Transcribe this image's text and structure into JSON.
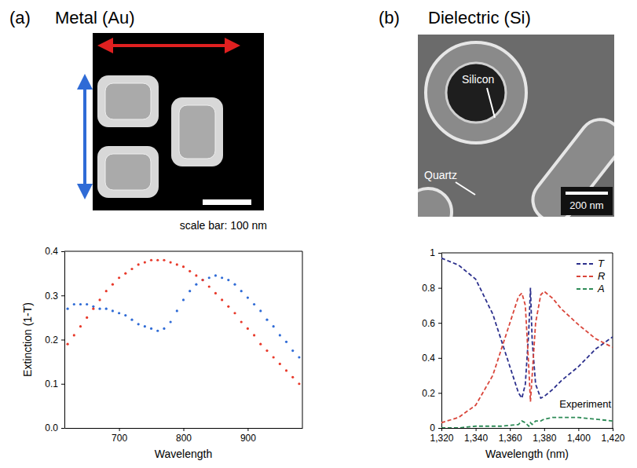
{
  "chart_data": [
    {
      "type": "scatter",
      "panel_label": "(a)",
      "title": "Metal (Au)",
      "annotations": [
        "scale bar: 100 nm"
      ],
      "x_label": "Wavelength",
      "y_label": "Extinction (1-T)",
      "marker": "dot",
      "x": [
        620,
        630,
        640,
        650,
        660,
        670,
        680,
        690,
        700,
        710,
        720,
        730,
        740,
        750,
        760,
        770,
        780,
        790,
        800,
        810,
        820,
        830,
        840,
        850,
        860,
        870,
        880,
        890,
        900,
        910,
        920,
        930,
        940,
        950,
        960,
        970,
        980
      ],
      "series": [
        {
          "color": "#2f6bd6",
          "values": [
            0.27,
            0.28,
            0.28,
            0.28,
            0.275,
            0.27,
            0.27,
            0.265,
            0.26,
            0.255,
            0.245,
            0.235,
            0.23,
            0.225,
            0.22,
            0.225,
            0.24,
            0.265,
            0.29,
            0.31,
            0.325,
            0.335,
            0.34,
            0.345,
            0.34,
            0.335,
            0.325,
            0.31,
            0.295,
            0.28,
            0.265,
            0.245,
            0.23,
            0.21,
            0.195,
            0.175,
            0.16
          ]
        },
        {
          "color": "#e8392a",
          "values": [
            0.19,
            0.21,
            0.23,
            0.25,
            0.27,
            0.29,
            0.31,
            0.325,
            0.34,
            0.35,
            0.36,
            0.37,
            0.375,
            0.38,
            0.38,
            0.38,
            0.375,
            0.37,
            0.365,
            0.355,
            0.345,
            0.335,
            0.32,
            0.305,
            0.29,
            0.275,
            0.26,
            0.24,
            0.225,
            0.21,
            0.19,
            0.175,
            0.16,
            0.145,
            0.13,
            0.115,
            0.1
          ]
        }
      ],
      "xlim": [
        615,
        985
      ],
      "xticks": [
        700,
        800,
        900
      ],
      "ylim": [
        0,
        0.4
      ],
      "yticks": [
        {
          "value": 0,
          "label": "0.0"
        },
        0.1,
        0.2,
        0.3,
        0.4
      ],
      "grid": false
    },
    {
      "type": "line",
      "panel_label": "(b)",
      "title": "Dielectric (Si)",
      "annotations": [
        "Silicon",
        "Quartz",
        "200 nm",
        "Experiment"
      ],
      "x_label": "Wavelength (nm)",
      "line_style": "dashed",
      "legend": "upper right",
      "x": [
        1320,
        1330,
        1340,
        1350,
        1355,
        1360,
        1365,
        1367,
        1369,
        1371,
        1372,
        1373,
        1375,
        1378,
        1380,
        1385,
        1390,
        1400,
        1410,
        1420
      ],
      "series": [
        {
          "name": "T",
          "color": "#2b2f8c",
          "values": [
            0.97,
            0.93,
            0.85,
            0.65,
            0.5,
            0.35,
            0.2,
            0.17,
            0.25,
            0.55,
            0.8,
            0.5,
            0.25,
            0.17,
            0.18,
            0.22,
            0.27,
            0.35,
            0.45,
            0.52
          ]
        },
        {
          "name": "R",
          "color": "#d9453a",
          "values": [
            0.03,
            0.06,
            0.13,
            0.3,
            0.45,
            0.6,
            0.75,
            0.77,
            0.7,
            0.35,
            0.15,
            0.3,
            0.6,
            0.76,
            0.78,
            0.74,
            0.68,
            0.59,
            0.51,
            0.46
          ]
        },
        {
          "name": "A",
          "color": "#2e8b57",
          "values": [
            0,
            0,
            0.01,
            0.01,
            0.01,
            0.015,
            0.02,
            0.04,
            0.03,
            0.01,
            0.03,
            0.02,
            0.04,
            0.04,
            0.05,
            0.06,
            0.06,
            0.06,
            0.05,
            0.04
          ]
        }
      ],
      "xlim": [
        1320,
        1420
      ],
      "xticks": [
        {
          "value": 1320,
          "label": "1,320"
        },
        {
          "value": 1340,
          "label": "1,340"
        },
        {
          "value": 1360,
          "label": "1,360"
        },
        {
          "value": 1380,
          "label": "1,380"
        },
        {
          "value": 1400,
          "label": "1,400"
        },
        {
          "value": 1420,
          "label": "1,420"
        }
      ],
      "ylim": [
        0,
        1
      ],
      "yticks": [
        0,
        0.2,
        0.4,
        0.6,
        0.8,
        1
      ],
      "grid": false
    }
  ]
}
